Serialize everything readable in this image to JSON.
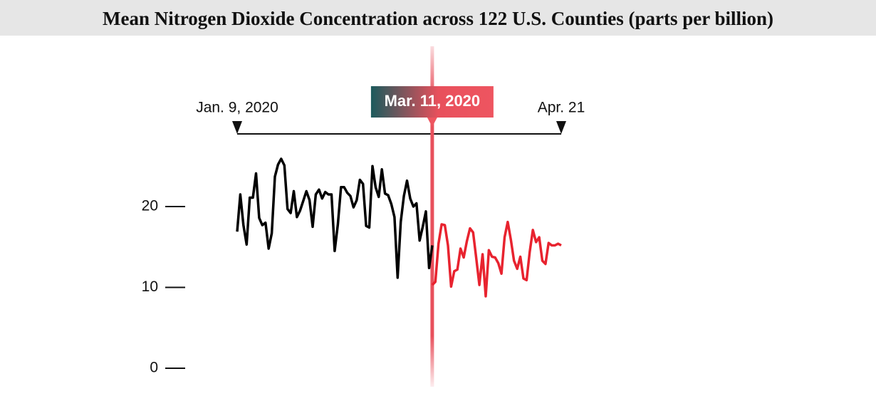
{
  "chart_data": {
    "type": "line",
    "title": "Mean Nitrogen Dioxide Concentration across 122 U.S. Counties (parts per billion)",
    "x": [
      0,
      1,
      2,
      3,
      4,
      5,
      6,
      7,
      8,
      9,
      10,
      11,
      12,
      13,
      14,
      15,
      16,
      17,
      18,
      19,
      20,
      21,
      22,
      23,
      24,
      25,
      26,
      27,
      28,
      29,
      30,
      31,
      32,
      33,
      34,
      35,
      36,
      37,
      38,
      39,
      40,
      41,
      42,
      43,
      44,
      45,
      46,
      47,
      48,
      49,
      50,
      51,
      52,
      53,
      54,
      55,
      56,
      57,
      58,
      59,
      60,
      61,
      62,
      63,
      64,
      65,
      66,
      67,
      68,
      69,
      70,
      71,
      72,
      73,
      74,
      75,
      76,
      77,
      78,
      79,
      80,
      81,
      82,
      83,
      84,
      85,
      86,
      87,
      88,
      89,
      90,
      91,
      92,
      93,
      94,
      95,
      96,
      97,
      98,
      99,
      100,
      101,
      102,
      103
    ],
    "xlim": [
      0,
      103
    ],
    "xticks": [
      {
        "value": 0,
        "label": "Jan. 9, 2020"
      },
      {
        "value": 62,
        "label": "Mar. 11, 2020"
      },
      {
        "value": 103,
        "label": "Apr. 21"
      }
    ],
    "ylim": [
      0,
      27
    ],
    "yticks": [
      0,
      10,
      20
    ],
    "series": [
      {
        "color": "#000000",
        "values": [
          16.9,
          21.5,
          17.7,
          15.3,
          21.1,
          21.1,
          24.1,
          18.6,
          17.7,
          18.0,
          14.8,
          16.7,
          23.7,
          25.2,
          25.9,
          25.1,
          19.7,
          19.2,
          21.9,
          18.7,
          19.5,
          20.7,
          21.9,
          20.8,
          17.5,
          21.5,
          22.1,
          21.0,
          21.8,
          21.5,
          21.5,
          14.5,
          17.8,
          22.4,
          22.4,
          21.7,
          21.3,
          19.9,
          20.8,
          23.3,
          22.8,
          17.6,
          17.4,
          25.0,
          22.4,
          21.2,
          24.6,
          21.6,
          21.4,
          20.3,
          18.7,
          11.2,
          18.1,
          21.3,
          23.2,
          21.0,
          20.0,
          20.4,
          15.8,
          17.5,
          19.4,
          12.4,
          15.2,
          null,
          null,
          null,
          null,
          null,
          null,
          null,
          null,
          null,
          null,
          null,
          null,
          null,
          null,
          null,
          null,
          null,
          null,
          null,
          null,
          null,
          null,
          null,
          null,
          null,
          null,
          null,
          null,
          null,
          null,
          null,
          null,
          null,
          null,
          null,
          null,
          null,
          null,
          null,
          null,
          null
        ]
      },
      {
        "color": "#e8232f",
        "values": [
          null,
          null,
          null,
          null,
          null,
          null,
          null,
          null,
          null,
          null,
          null,
          null,
          null,
          null,
          null,
          null,
          null,
          null,
          null,
          null,
          null,
          null,
          null,
          null,
          null,
          null,
          null,
          null,
          null,
          null,
          null,
          null,
          null,
          null,
          null,
          null,
          null,
          null,
          null,
          null,
          null,
          null,
          null,
          null,
          null,
          null,
          null,
          null,
          null,
          null,
          null,
          null,
          null,
          null,
          null,
          null,
          null,
          null,
          null,
          null,
          null,
          null,
          10.3,
          10.7,
          15.4,
          17.8,
          17.7,
          15.2,
          10.1,
          12.0,
          12.2,
          14.8,
          13.7,
          15.7,
          17.3,
          16.8,
          13.6,
          10.3,
          14.1,
          8.9,
          14.6,
          13.8,
          13.7,
          13.0,
          11.7,
          16.2,
          18.1,
          15.9,
          13.3,
          12.3,
          13.8,
          11.1,
          10.9,
          14.4,
          17.1,
          15.6,
          16.2,
          13.3,
          12.9,
          15.5,
          15.2,
          15.2,
          15.4,
          15.2
        ]
      }
    ]
  }
}
